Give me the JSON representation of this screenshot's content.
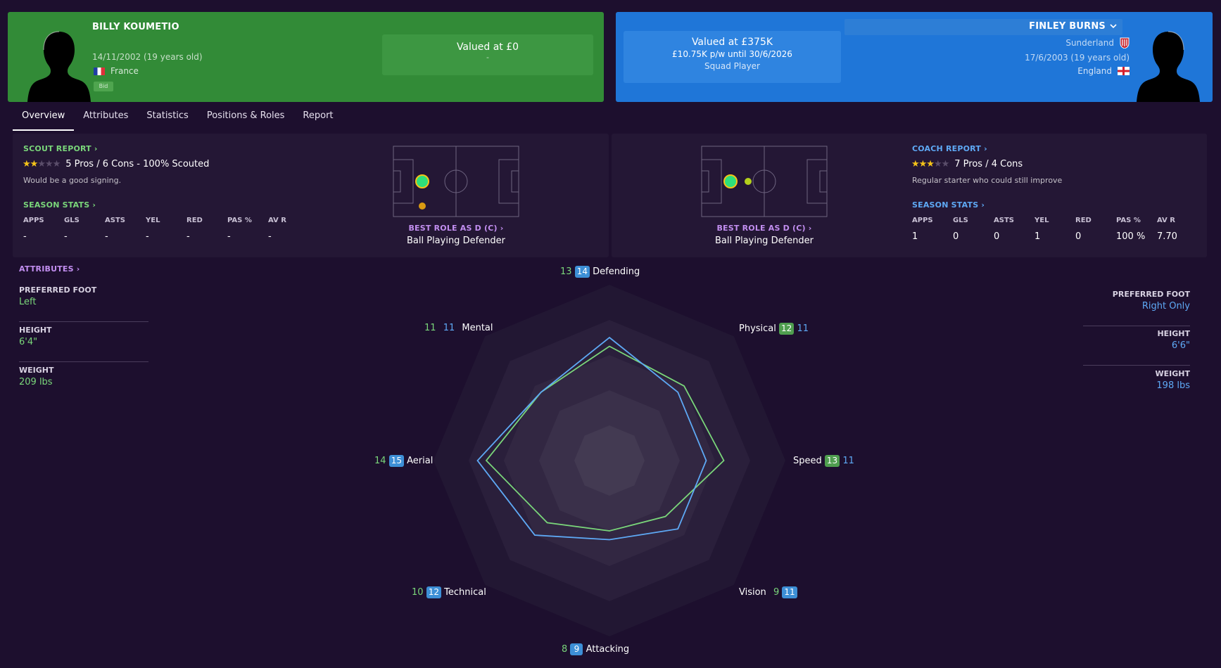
{
  "left_player": {
    "name": "BILLY KOUMETIO",
    "dob": "14/11/2002 (19 years old)",
    "nationality": "France",
    "bid_label": "Bid",
    "value_main": "Valued at £0",
    "value_sub": "-"
  },
  "right_player": {
    "name": "FINLEY BURNS",
    "club": "Sunderland",
    "dob": "17/6/2003 (19 years old)",
    "nationality": "England",
    "value_main": "Valued at £375K",
    "wage": "£10.75K p/w until 30/6/2026",
    "status": "Squad Player"
  },
  "tabs": [
    "Overview",
    "Attributes",
    "Statistics",
    "Positions & Roles",
    "Report"
  ],
  "left_scout": {
    "header": "SCOUT REPORT",
    "stars_filled": 2,
    "stars_total": 5,
    "summary": "5 Pros / 6 Cons - 100% Scouted",
    "comment": "Would be a good signing.",
    "stats_header": "SEASON STATS",
    "stat_headers": [
      "APPS",
      "GLS",
      "ASTS",
      "YEL",
      "RED",
      "PAS %",
      "AV R"
    ],
    "stat_values": [
      "-",
      "-",
      "-",
      "-",
      "-",
      "-",
      "-"
    ]
  },
  "left_role": {
    "header": "BEST ROLE AS D (C)",
    "role": "Ball Playing Defender"
  },
  "right_role": {
    "header": "BEST ROLE AS D (C)",
    "role": "Ball Playing Defender"
  },
  "right_coach": {
    "header": "COACH REPORT",
    "stars_filled": 3,
    "stars_total": 5,
    "summary": "7 Pros / 4 Cons",
    "comment": "Regular starter who could still improve",
    "stats_header": "SEASON STATS",
    "stat_headers": [
      "APPS",
      "GLS",
      "ASTS",
      "YEL",
      "RED",
      "PAS %",
      "AV R"
    ],
    "stat_values": [
      "1",
      "0",
      "0",
      "1",
      "0",
      "100 %",
      "7.70"
    ]
  },
  "left_attrs": {
    "header": "ATTRIBUTES",
    "foot_label": "PREFERRED FOOT",
    "foot": "Left",
    "height_label": "HEIGHT",
    "height": "6'4\"",
    "weight_label": "WEIGHT",
    "weight": "209 lbs"
  },
  "right_attrs": {
    "foot_label": "PREFERRED FOOT",
    "foot": "Right Only",
    "height_label": "HEIGHT",
    "height": "6'6\"",
    "weight_label": "WEIGHT",
    "weight": "198 lbs"
  },
  "radar": {
    "axes": [
      "Defending",
      "Physical",
      "Speed",
      "Vision",
      "Attacking",
      "Technical",
      "Aerial",
      "Mental"
    ],
    "left_values": [
      13,
      12,
      13,
      9,
      8,
      10,
      14,
      11
    ],
    "right_values": [
      14,
      11,
      11,
      11,
      9,
      12,
      15,
      11
    ],
    "left_color": "#7ad67a",
    "right_color": "#5ea9f5",
    "max": 20
  },
  "colors": {
    "left_card": "#328b37",
    "right_card": "#1f76d8",
    "background": "#1d0f2e"
  }
}
